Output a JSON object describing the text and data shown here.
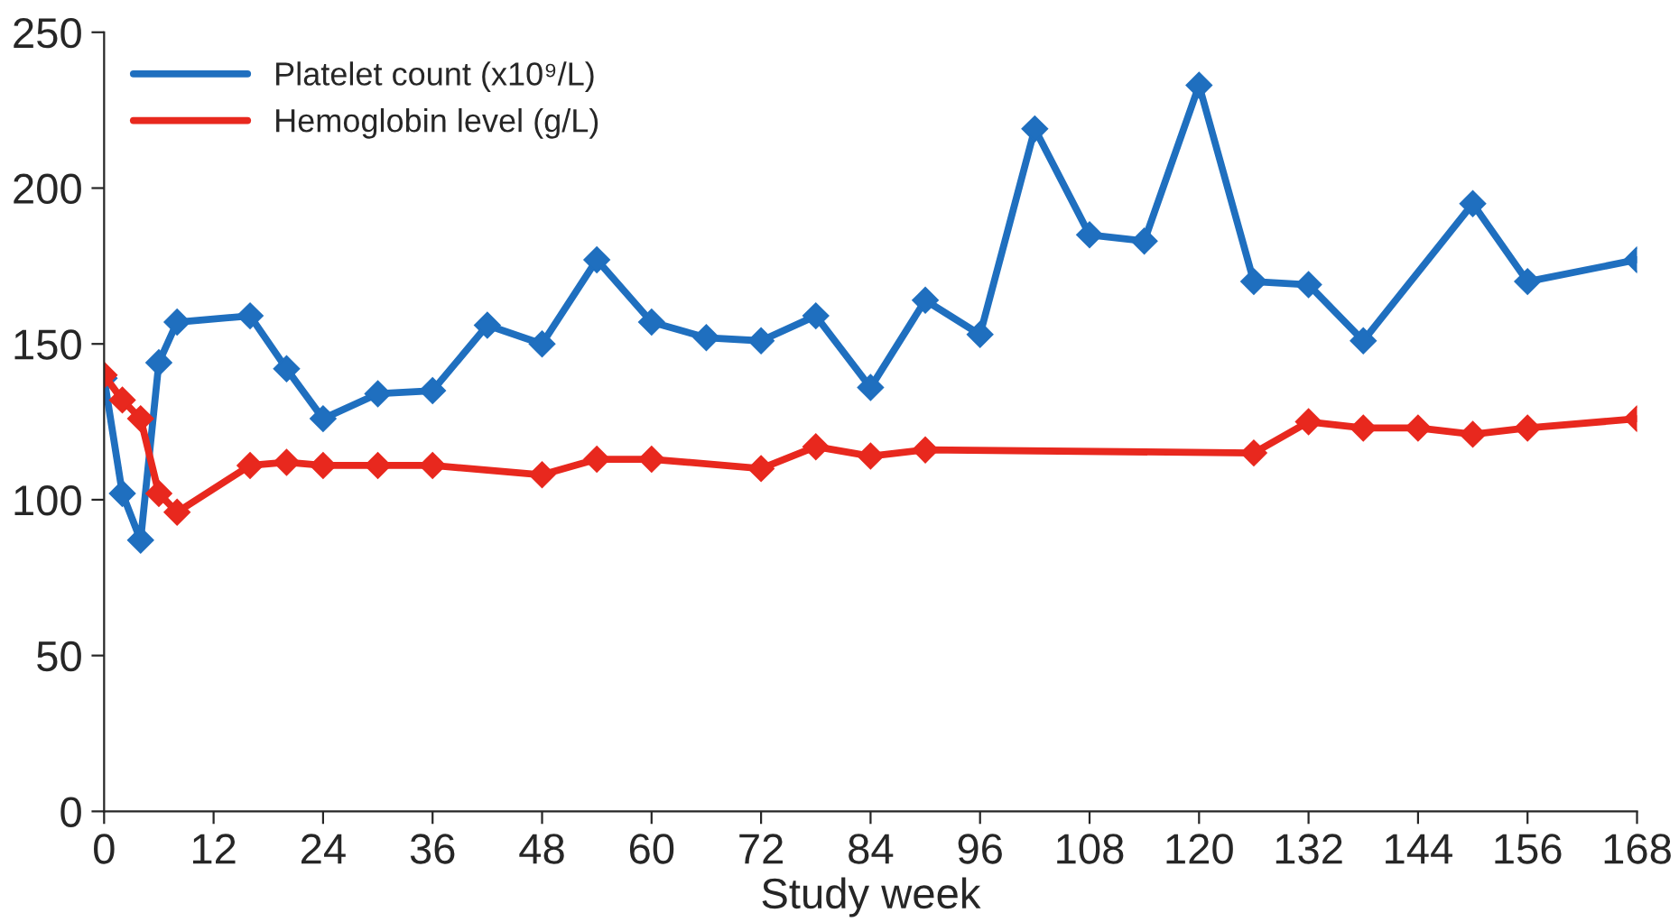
{
  "chart_data": {
    "type": "line",
    "xlabel": "Study week",
    "xlim": [
      0,
      168
    ],
    "xticks": [
      0,
      12,
      24,
      36,
      48,
      60,
      72,
      84,
      96,
      108,
      120,
      132,
      144,
      156,
      168
    ],
    "ylim": [
      0,
      250
    ],
    "yticks": [
      0,
      50,
      100,
      150,
      200,
      250
    ],
    "grid": false,
    "legend": "top left",
    "marker": "diamond",
    "line_style": "solid",
    "series": [
      {
        "name": "Platelet count (x10⁹/L)",
        "color": "#1f6fbf",
        "x": [
          0,
          2,
          4,
          6,
          8,
          16,
          20,
          24,
          30,
          36,
          42,
          48,
          54,
          60,
          66,
          72,
          78,
          84,
          90,
          96,
          102,
          108,
          114,
          120,
          126,
          132,
          138,
          150,
          156,
          168
        ],
        "values": [
          139,
          102,
          87,
          144,
          157,
          159,
          142,
          126,
          134,
          135,
          156,
          150,
          177,
          157,
          152,
          151,
          159,
          136,
          164,
          153,
          219,
          185,
          183,
          233,
          170,
          169,
          151,
          195,
          170,
          177
        ]
      },
      {
        "name": "Hemoglobin level (g/L)",
        "color": "#e8281e",
        "x": [
          0,
          2,
          4,
          6,
          8,
          16,
          20,
          24,
          30,
          36,
          48,
          54,
          60,
          72,
          78,
          84,
          90,
          126,
          132,
          138,
          144,
          150,
          156,
          168
        ],
        "values": [
          140,
          132,
          126,
          102,
          96,
          111,
          112,
          111,
          111,
          111,
          108,
          113,
          113,
          110,
          117,
          114,
          116,
          115,
          125,
          123,
          123,
          121,
          123,
          126
        ]
      }
    ]
  }
}
